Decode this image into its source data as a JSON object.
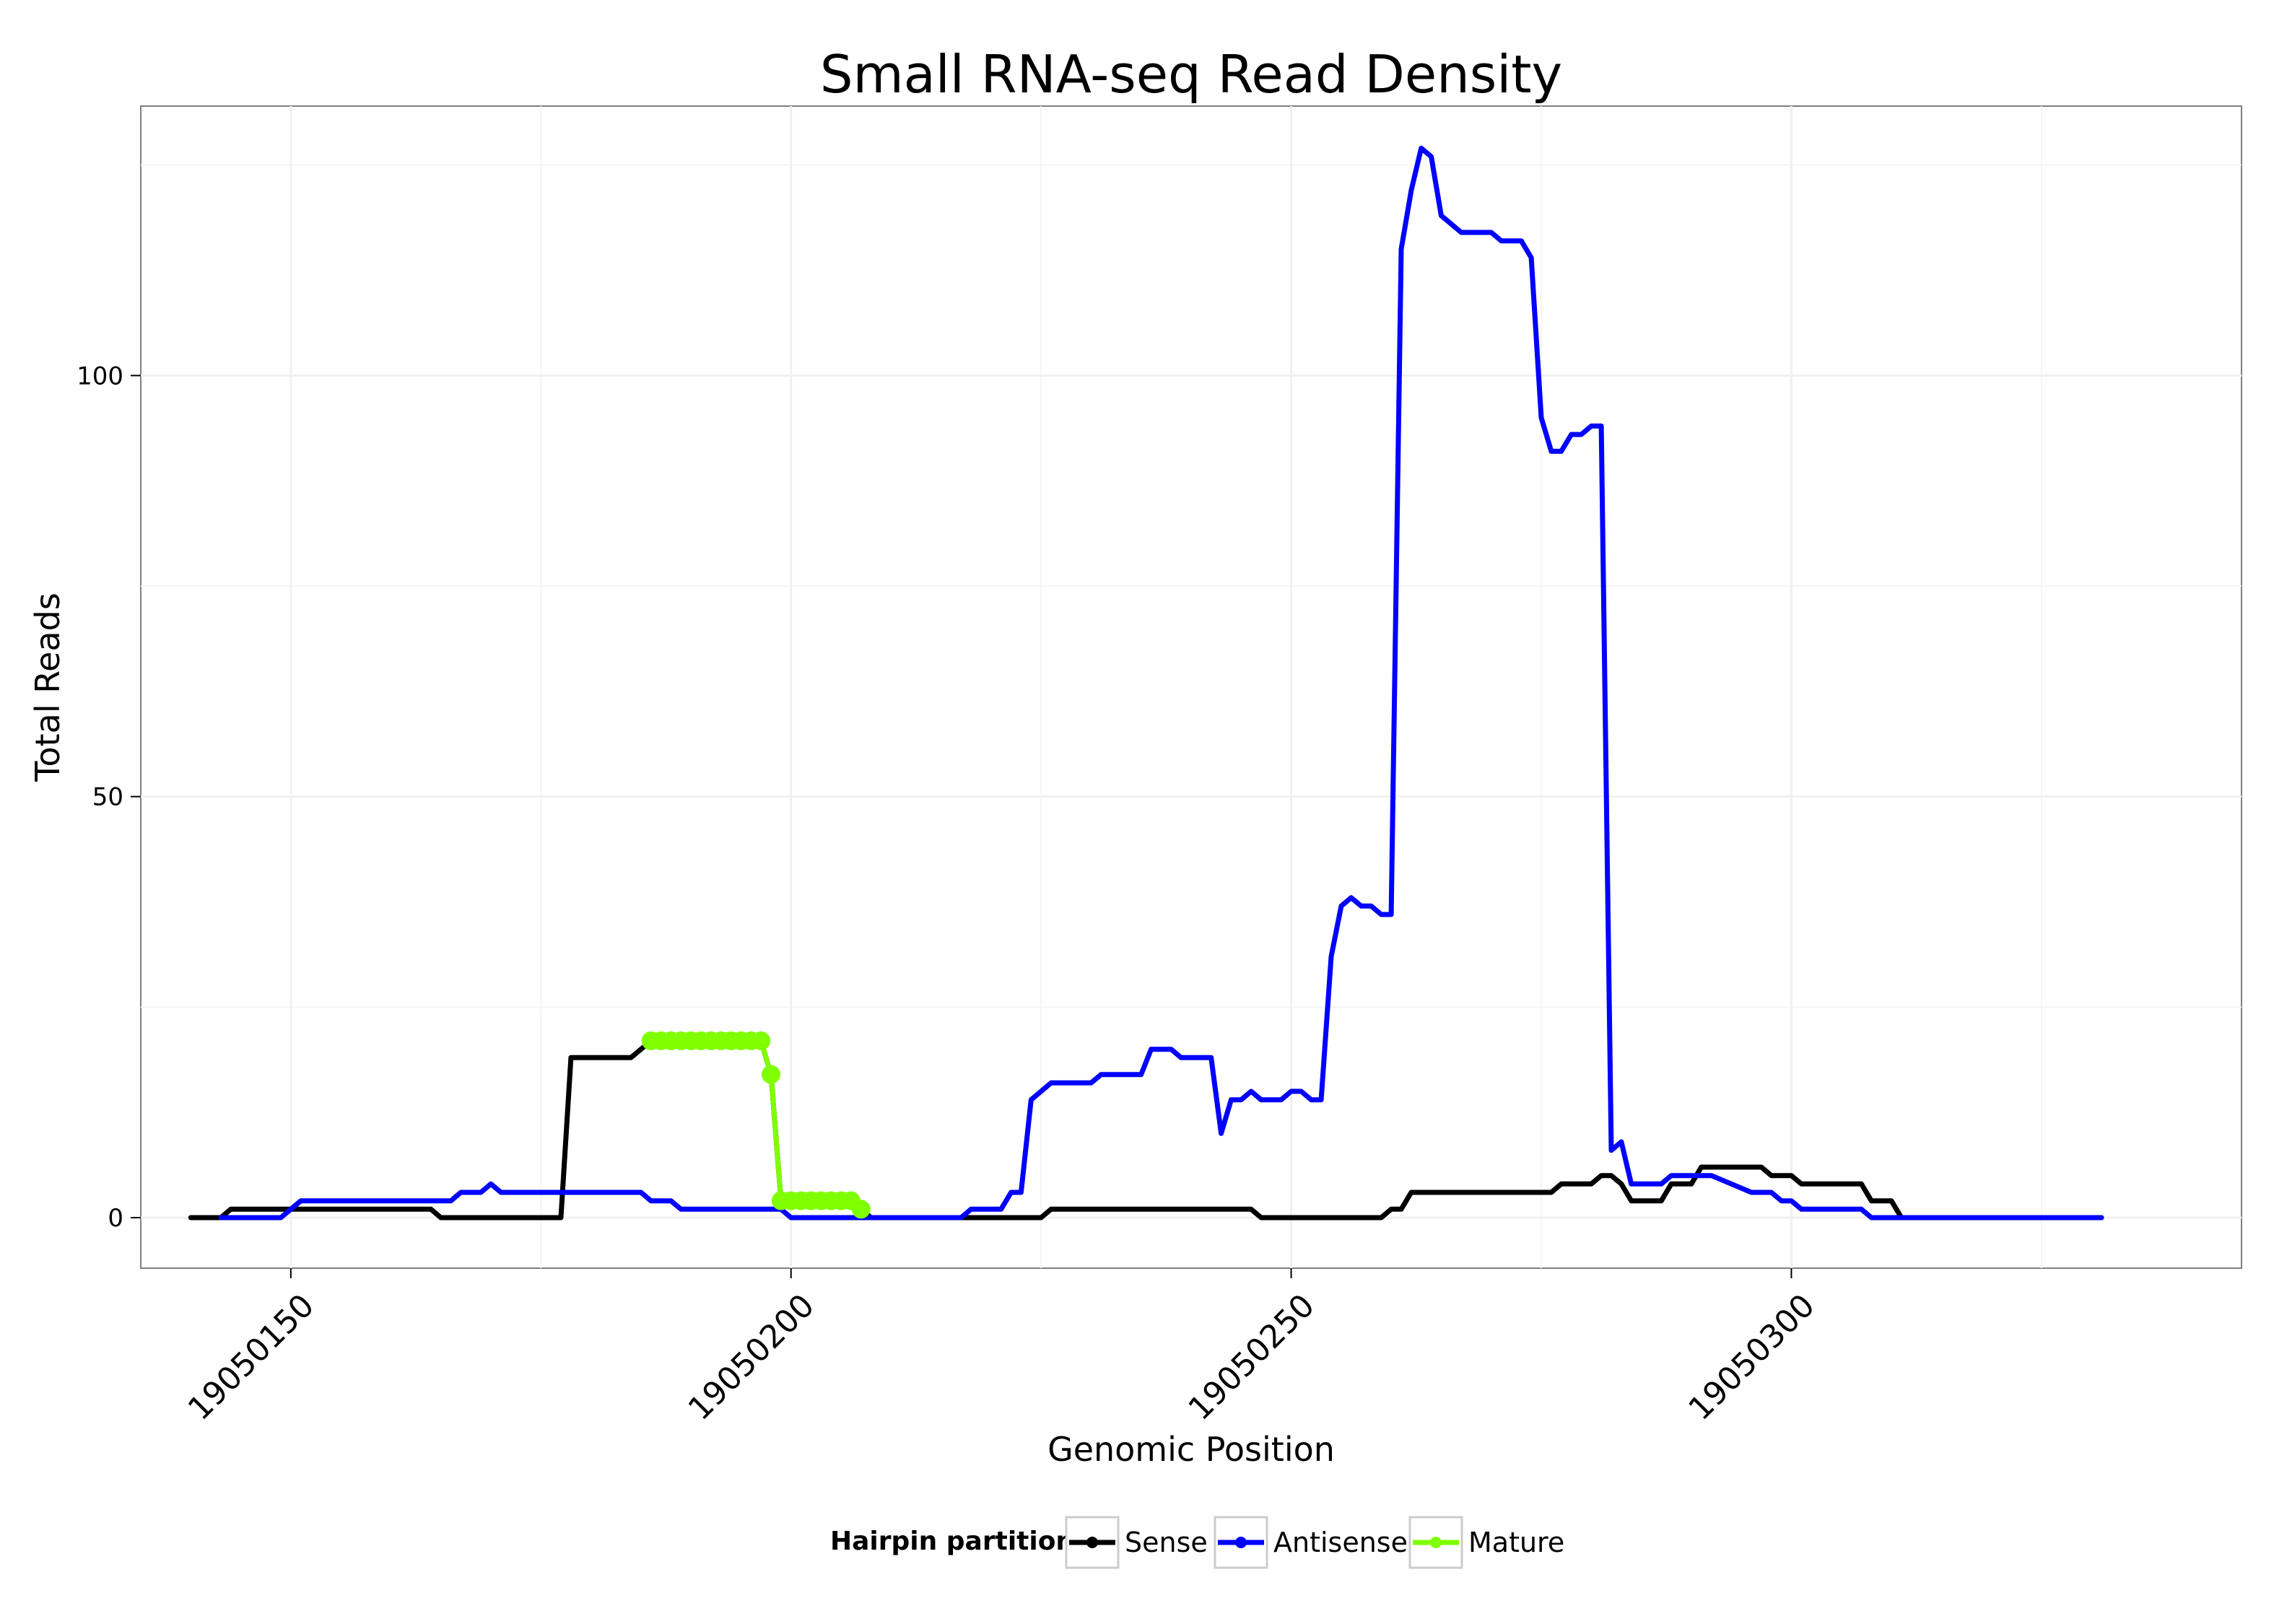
{
  "chart_data": {
    "type": "line",
    "title": "Small RNA-seq Read Density",
    "xlabel": "Genomic Position",
    "ylabel": "Total Reads",
    "xlim": [
      19050135,
      19050345
    ],
    "ylim": [
      -6,
      132
    ],
    "x_ticks": [
      19050150,
      19050200,
      19050250,
      19050300
    ],
    "x_tick_labels": [
      "19050150",
      "19050200",
      "19050250",
      "19050300"
    ],
    "y_ticks": [
      0,
      50,
      100
    ],
    "y_tick_labels": [
      "0",
      "50",
      "100"
    ],
    "grid": true,
    "legend": {
      "title": "Hairpin partition",
      "position": "bottom",
      "entries": [
        "Sense",
        "Antisense",
        "Mature"
      ]
    },
    "colors": {
      "Sense": "#000000",
      "Antisense": "#0000ff",
      "Mature": "#7fff00"
    },
    "series": [
      {
        "name": "Sense",
        "points": [
          [
            19050140,
            0
          ],
          [
            19050143,
            0
          ],
          [
            19050144,
            1
          ],
          [
            19050164,
            1
          ],
          [
            19050165,
            0
          ],
          [
            19050177,
            0
          ],
          [
            19050178,
            19
          ],
          [
            19050184,
            19
          ],
          [
            19050185,
            20
          ],
          [
            19050186,
            21
          ],
          [
            19050197,
            21
          ],
          [
            19050198,
            17
          ],
          [
            19050199,
            2
          ],
          [
            19050206,
            2
          ],
          [
            19050207,
            1
          ],
          [
            19050208,
            0
          ],
          [
            19050225,
            0
          ],
          [
            19050226,
            1
          ],
          [
            19050246,
            1
          ],
          [
            19050247,
            0
          ],
          [
            19050259,
            0
          ],
          [
            19050260,
            1
          ],
          [
            19050261,
            1
          ],
          [
            19050262,
            3
          ],
          [
            19050276,
            3
          ],
          [
            19050277,
            4
          ],
          [
            19050280,
            4
          ],
          [
            19050281,
            5
          ],
          [
            19050282,
            5
          ],
          [
            19050283,
            4
          ],
          [
            19050284,
            2
          ],
          [
            19050287,
            2
          ],
          [
            19050288,
            4
          ],
          [
            19050290,
            4
          ],
          [
            19050291,
            6
          ],
          [
            19050297,
            6
          ],
          [
            19050298,
            5
          ],
          [
            19050300,
            5
          ],
          [
            19050301,
            4
          ],
          [
            19050307,
            4
          ],
          [
            19050308,
            2
          ],
          [
            19050310,
            2
          ],
          [
            19050311,
            0
          ],
          [
            19050331,
            0
          ]
        ]
      },
      {
        "name": "Antisense",
        "points": [
          [
            19050143,
            0
          ],
          [
            19050149,
            0
          ],
          [
            19050150,
            1
          ],
          [
            19050151,
            2
          ],
          [
            19050166,
            2
          ],
          [
            19050167,
            3
          ],
          [
            19050169,
            3
          ],
          [
            19050170,
            4
          ],
          [
            19050171,
            3
          ],
          [
            19050185,
            3
          ],
          [
            19050186,
            2
          ],
          [
            19050188,
            2
          ],
          [
            19050189,
            1
          ],
          [
            19050199,
            1
          ],
          [
            19050200,
            0
          ],
          [
            19050217,
            0
          ],
          [
            19050218,
            1
          ],
          [
            19050221,
            1
          ],
          [
            19050222,
            3
          ],
          [
            19050223,
            3
          ],
          [
            19050224,
            14
          ],
          [
            19050226,
            16
          ],
          [
            19050230,
            16
          ],
          [
            19050231,
            17
          ],
          [
            19050235,
            17
          ],
          [
            19050236,
            20
          ],
          [
            19050238,
            20
          ],
          [
            19050239,
            19
          ],
          [
            19050242,
            19
          ],
          [
            19050243,
            10
          ],
          [
            19050244,
            14
          ],
          [
            19050245,
            14
          ],
          [
            19050246,
            15
          ],
          [
            19050247,
            14
          ],
          [
            19050249,
            14
          ],
          [
            19050250,
            15
          ],
          [
            19050251,
            15
          ],
          [
            19050252,
            14
          ],
          [
            19050253,
            14
          ],
          [
            19050254,
            31
          ],
          [
            19050255,
            37
          ],
          [
            19050256,
            38
          ],
          [
            19050257,
            37
          ],
          [
            19050258,
            37
          ],
          [
            19050259,
            36
          ],
          [
            19050260,
            36
          ],
          [
            19050261,
            115
          ],
          [
            19050262,
            122
          ],
          [
            19050263,
            127
          ],
          [
            19050264,
            126
          ],
          [
            19050265,
            119
          ],
          [
            19050267,
            117
          ],
          [
            19050270,
            117
          ],
          [
            19050271,
            116
          ],
          [
            19050273,
            116
          ],
          [
            19050274,
            114
          ],
          [
            19050275,
            95
          ],
          [
            19050276,
            91
          ],
          [
            19050277,
            91
          ],
          [
            19050278,
            93
          ],
          [
            19050279,
            93
          ],
          [
            19050280,
            94
          ],
          [
            19050281,
            94
          ],
          [
            19050282,
            8
          ],
          [
            19050283,
            9
          ],
          [
            19050284,
            4
          ],
          [
            19050287,
            4
          ],
          [
            19050288,
            5
          ],
          [
            19050292,
            5
          ],
          [
            19050294,
            4
          ],
          [
            19050296,
            3
          ],
          [
            19050298,
            3
          ],
          [
            19050299,
            2
          ],
          [
            19050300,
            2
          ],
          [
            19050301,
            1
          ],
          [
            19050307,
            1
          ],
          [
            19050308,
            0
          ],
          [
            19050331,
            0
          ]
        ]
      },
      {
        "name": "Mature",
        "points": [
          [
            19050186,
            21
          ],
          [
            19050187,
            21
          ],
          [
            19050188,
            21
          ],
          [
            19050189,
            21
          ],
          [
            19050190,
            21
          ],
          [
            19050191,
            21
          ],
          [
            19050192,
            21
          ],
          [
            19050193,
            21
          ],
          [
            19050194,
            21
          ],
          [
            19050195,
            21
          ],
          [
            19050196,
            21
          ],
          [
            19050197,
            21
          ],
          [
            19050198,
            17
          ],
          [
            19050199,
            2
          ],
          [
            19050200,
            2
          ],
          [
            19050201,
            2
          ],
          [
            19050202,
            2
          ],
          [
            19050203,
            2
          ],
          [
            19050204,
            2
          ],
          [
            19050205,
            2
          ],
          [
            19050206,
            2
          ],
          [
            19050207,
            1
          ]
        ]
      }
    ]
  }
}
